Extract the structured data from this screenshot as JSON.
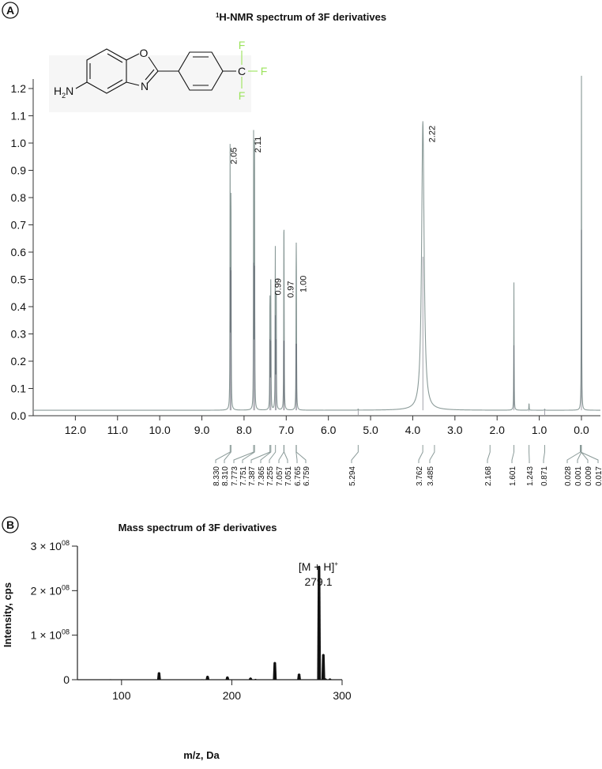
{
  "panel_a": {
    "letter": "A",
    "structure": {
      "o": "O",
      "n": "N",
      "nh2": "H",
      "nh2_sub": "2",
      "nh2_n": "N",
      "c": "C",
      "f1": "F",
      "f2": "F",
      "f3": "F",
      "f_color": "#9be35b"
    }
  },
  "panel_b": {
    "letter": "B"
  },
  "chart_data": [
    {
      "type": "line",
      "title": "H-NMR spectrum of 3F derivatives",
      "title_sup": "1",
      "xlim": [
        13.0,
        -0.45
      ],
      "ylim": [
        0.0,
        1.25
      ],
      "x_ticks": [
        "12.0",
        "11.0",
        "10.0",
        "9.0",
        "8.0",
        "7.0",
        "6.0",
        "5.0",
        "4.0",
        "3.0",
        "2.0",
        "1.0",
        "0.0"
      ],
      "x_tick_values": [
        12,
        11,
        10,
        9,
        8,
        7,
        6,
        5,
        4,
        3,
        2,
        1,
        0
      ],
      "y_ticks": [
        "0.0",
        "0.1",
        "0.2",
        "0.3",
        "0.4",
        "0.5",
        "0.6",
        "0.7",
        "0.8",
        "0.9",
        "1.0",
        "1.1",
        "1.2"
      ],
      "y_tick_values": [
        0,
        0.1,
        0.2,
        0.3,
        0.4,
        0.5,
        0.6,
        0.7,
        0.8,
        0.9,
        1.0,
        1.1,
        1.2
      ],
      "baseline": 0.02,
      "line_color": "#8a9a98",
      "peaks": [
        {
          "ppm": 8.33,
          "height": 0.99
        },
        {
          "ppm": 8.31,
          "height": 0.97
        },
        {
          "ppm": 7.773,
          "height": 1.02
        },
        {
          "ppm": 7.751,
          "height": 1.0
        },
        {
          "ppm": 7.387,
          "height": 0.51
        },
        {
          "ppm": 7.365,
          "height": 0.5
        },
        {
          "ppm": 7.26,
          "height": 0.67
        },
        {
          "ppm": 7.237,
          "height": 0.51
        },
        {
          "ppm": 7.057,
          "height": 0.5
        },
        {
          "ppm": 7.051,
          "height": 0.5
        },
        {
          "ppm": 6.765,
          "height": 0.48
        },
        {
          "ppm": 6.759,
          "height": 0.48
        },
        {
          "ppm": 5.294,
          "height": 0.005
        },
        {
          "ppm": 3.76,
          "height": 1.06,
          "broad": true
        },
        {
          "ppm": 1.601,
          "height": 0.47
        },
        {
          "ppm": 1.243,
          "height": 0.03
        },
        {
          "ppm": 0.871,
          "height": 0.005
        },
        {
          "ppm": 0.0,
          "height": 1.24
        }
      ],
      "integrations": [
        {
          "ppm": 8.25,
          "y": 0.99,
          "label": "2.05"
        },
        {
          "ppm": 7.68,
          "y": 1.03,
          "label": "2.11"
        },
        {
          "ppm": 7.2,
          "y": 0.51,
          "label": "0.99"
        },
        {
          "ppm": 6.9,
          "y": 0.5,
          "label": "0.97"
        },
        {
          "ppm": 6.6,
          "y": 0.52,
          "label": "1.00"
        },
        {
          "ppm": 3.55,
          "y": 1.07,
          "label": "2.22"
        }
      ],
      "peak_labels": [
        "8.330",
        "8.310",
        "7.773",
        "7.751",
        "7.387",
        "7.365",
        "7.255",
        "7.057",
        "7.051",
        "6.765",
        "6.759",
        "5.294",
        "3.762",
        "3.485",
        "2.168",
        "1.601",
        "1.243",
        "0.871",
        "0.028",
        "0.001",
        "0.009",
        "0.017"
      ]
    },
    {
      "type": "bar",
      "title": "Mass spectrum of 3F derivatives",
      "xlabel": "m/z, Da",
      "ylabel": "Intensity, cps",
      "xlim": [
        60,
        300
      ],
      "ylim": [
        0,
        300000000
      ],
      "x_ticks": [
        "100",
        "200",
        "300"
      ],
      "x_tick_values": [
        100,
        200,
        300
      ],
      "y_ticks": [
        {
          "base": "0",
          "exp": ""
        },
        {
          "base": "1 × 10",
          "exp": "08"
        },
        {
          "base": "2 × 10",
          "exp": "08"
        },
        {
          "base": "3 × 10",
          "exp": "08"
        }
      ],
      "y_tick_values": [
        0,
        100000000,
        200000000,
        300000000
      ],
      "annotation": {
        "ion": "[M + H]",
        "charge": "+",
        "mz": "279.1"
      },
      "peaks": [
        {
          "mz": 90,
          "intensity": 1000000
        },
        {
          "mz": 134,
          "intensity": 17000000
        },
        {
          "mz": 173,
          "intensity": 1000000
        },
        {
          "mz": 178,
          "intensity": 9000000
        },
        {
          "mz": 196,
          "intensity": 7500000
        },
        {
          "mz": 217,
          "intensity": 5000000
        },
        {
          "mz": 221.5,
          "intensity": 2000000
        },
        {
          "mz": 239,
          "intensity": 40000000
        },
        {
          "mz": 261,
          "intensity": 14000000
        },
        {
          "mz": 279.1,
          "intensity": 256000000
        },
        {
          "mz": 283,
          "intensity": 58000000
        },
        {
          "mz": 285,
          "intensity": 3000000
        },
        {
          "mz": 289,
          "intensity": 3000000
        }
      ]
    }
  ]
}
